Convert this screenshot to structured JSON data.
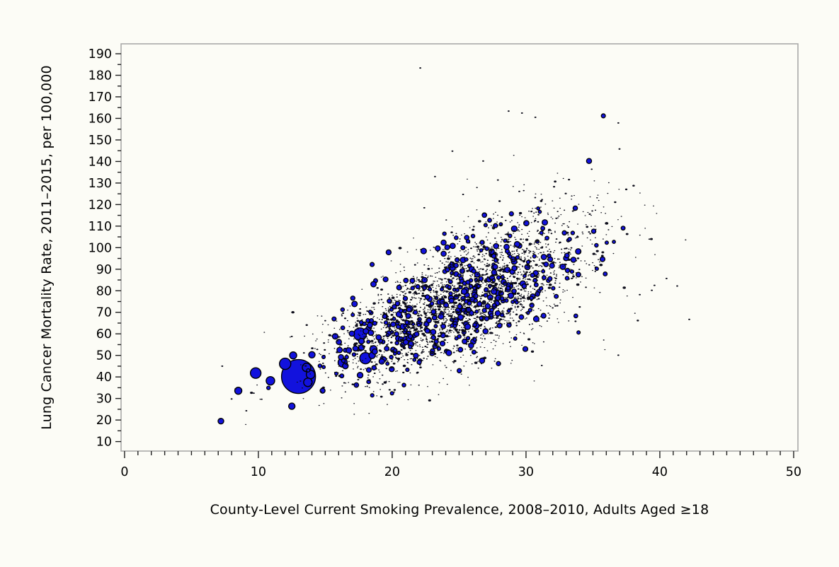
{
  "chart_data": {
    "type": "scatter",
    "subtype": "bubble",
    "title": "",
    "xlabel": "County-Level Current Smoking Prevalence, 2008–2010, Adults Aged ≥18",
    "ylabel": "Lung Cancer Mortality Rate, 2011–2015, per 100,000",
    "xlim": [
      -0.26,
      50.32
    ],
    "ylim": [
      5.6,
      194.6
    ],
    "x_ticks_major": [
      0,
      10,
      20,
      30,
      40,
      50
    ],
    "x_tick_labels": [
      "0",
      "10",
      "20",
      "30",
      "40",
      "50"
    ],
    "x_minor_step": 1,
    "y_ticks_major": [
      10,
      20,
      30,
      40,
      50,
      60,
      70,
      80,
      90,
      100,
      110,
      120,
      130,
      140,
      150,
      160,
      170,
      180,
      190
    ],
    "y_tick_labels": [
      "10",
      "20",
      "30",
      "40",
      "50",
      "60",
      "70",
      "80",
      "90",
      "100",
      "110",
      "120",
      "130",
      "140",
      "150",
      "160",
      "170",
      "180",
      "190"
    ],
    "y_minor_step": 5,
    "grid": false,
    "legend": "none",
    "highlight_bubbles": [
      {
        "x": 13.0,
        "y": 40.2,
        "r": 24
      },
      {
        "x": 17.6,
        "y": 59.8,
        "r": 9
      },
      {
        "x": 12.0,
        "y": 46.1,
        "r": 8
      },
      {
        "x": 18.0,
        "y": 48.7,
        "r": 8
      },
      {
        "x": 9.8,
        "y": 41.8,
        "r": 7.5
      },
      {
        "x": 16.3,
        "y": 46.7,
        "r": 6.5
      },
      {
        "x": 10.9,
        "y": 38.2,
        "r": 6
      },
      {
        "x": 13.6,
        "y": 44.4,
        "r": 6
      },
      {
        "x": 13.9,
        "y": 41.1,
        "r": 6
      },
      {
        "x": 13.7,
        "y": 37.5,
        "r": 6
      },
      {
        "x": 18.6,
        "y": 52.9,
        "r": 5
      },
      {
        "x": 12.6,
        "y": 50.0,
        "r": 5
      },
      {
        "x": 8.5,
        "y": 33.6,
        "r": 5
      },
      {
        "x": 12.5,
        "y": 26.4,
        "r": 4.5
      },
      {
        "x": 14.0,
        "y": 50.3,
        "r": 4.5
      },
      {
        "x": 18.5,
        "y": 50.0,
        "r": 4.5
      },
      {
        "x": 21.3,
        "y": 71.6,
        "r": 4.5
      },
      {
        "x": 17.7,
        "y": 56.6,
        "r": 4
      },
      {
        "x": 17.7,
        "y": 53.6,
        "r": 4
      },
      {
        "x": 20.8,
        "y": 63.4,
        "r": 4
      },
      {
        "x": 21.4,
        "y": 55.2,
        "r": 4
      },
      {
        "x": 17.6,
        "y": 40.8,
        "r": 4
      },
      {
        "x": 16.5,
        "y": 45.1,
        "r": 4
      },
      {
        "x": 7.2,
        "y": 19.5,
        "r": 4
      },
      {
        "x": 21.2,
        "y": 68.3,
        "r": 3.5
      },
      {
        "x": 14.8,
        "y": 33.6,
        "r": 3.5
      }
    ],
    "outlier_points": [
      {
        "x": 22.1,
        "y": 183.4
      },
      {
        "x": 28.7,
        "y": 163.4
      },
      {
        "x": 29.7,
        "y": 162.5
      },
      {
        "x": 30.7,
        "y": 160.5
      },
      {
        "x": 36.9,
        "y": 157.9
      },
      {
        "x": 24.5,
        "y": 144.8
      },
      {
        "x": 26.8,
        "y": 140.2
      },
      {
        "x": 23.2,
        "y": 133.0
      },
      {
        "x": 27.9,
        "y": 131.4
      },
      {
        "x": 29.5,
        "y": 126.1
      },
      {
        "x": 25.3,
        "y": 124.7
      },
      {
        "x": 31.2,
        "y": 122.3
      },
      {
        "x": 22.4,
        "y": 118.5
      },
      {
        "x": 33.5,
        "y": 117.0
      },
      {
        "x": 28.2,
        "y": 114.2
      },
      {
        "x": 30.9,
        "y": 112.0
      },
      {
        "x": 26.1,
        "y": 109.8
      },
      {
        "x": 34.8,
        "y": 106.5
      },
      {
        "x": 7.1,
        "y": 20.5
      },
      {
        "x": 7.3,
        "y": 45.0
      },
      {
        "x": 8.3,
        "y": 34.5
      },
      {
        "x": 40.5,
        "y": 85.7
      },
      {
        "x": 39.6,
        "y": 82.5
      },
      {
        "x": 39.4,
        "y": 80.2
      },
      {
        "x": 38.5,
        "y": 78.2
      },
      {
        "x": 41.3,
        "y": 82.2
      },
      {
        "x": 42.2,
        "y": 66.7
      },
      {
        "x": 36.9,
        "y": 50.1
      },
      {
        "x": 8.0,
        "y": 29.8
      },
      {
        "x": 9.1,
        "y": 24.3
      }
    ],
    "cloud": {
      "n": 3050,
      "seed": 42,
      "x_mean": 25.3,
      "x_sd": 4.9,
      "x_min": 6.8,
      "x_max": 43.0,
      "y_intercept": 10,
      "y_slope": 2.6,
      "y_noise_base": 10,
      "y_noise_slope": 0.22,
      "y_min": 9.0,
      "y_max": 186.0
    },
    "colors": {
      "bubble_fill": "#1212dd",
      "bubble_stroke": "#000000",
      "dot_fill": "#0d0d1a",
      "frame": "#a9a9a9",
      "tick": "#1f1f1f",
      "text": "#000000",
      "background": "#fcfcf6"
    }
  }
}
